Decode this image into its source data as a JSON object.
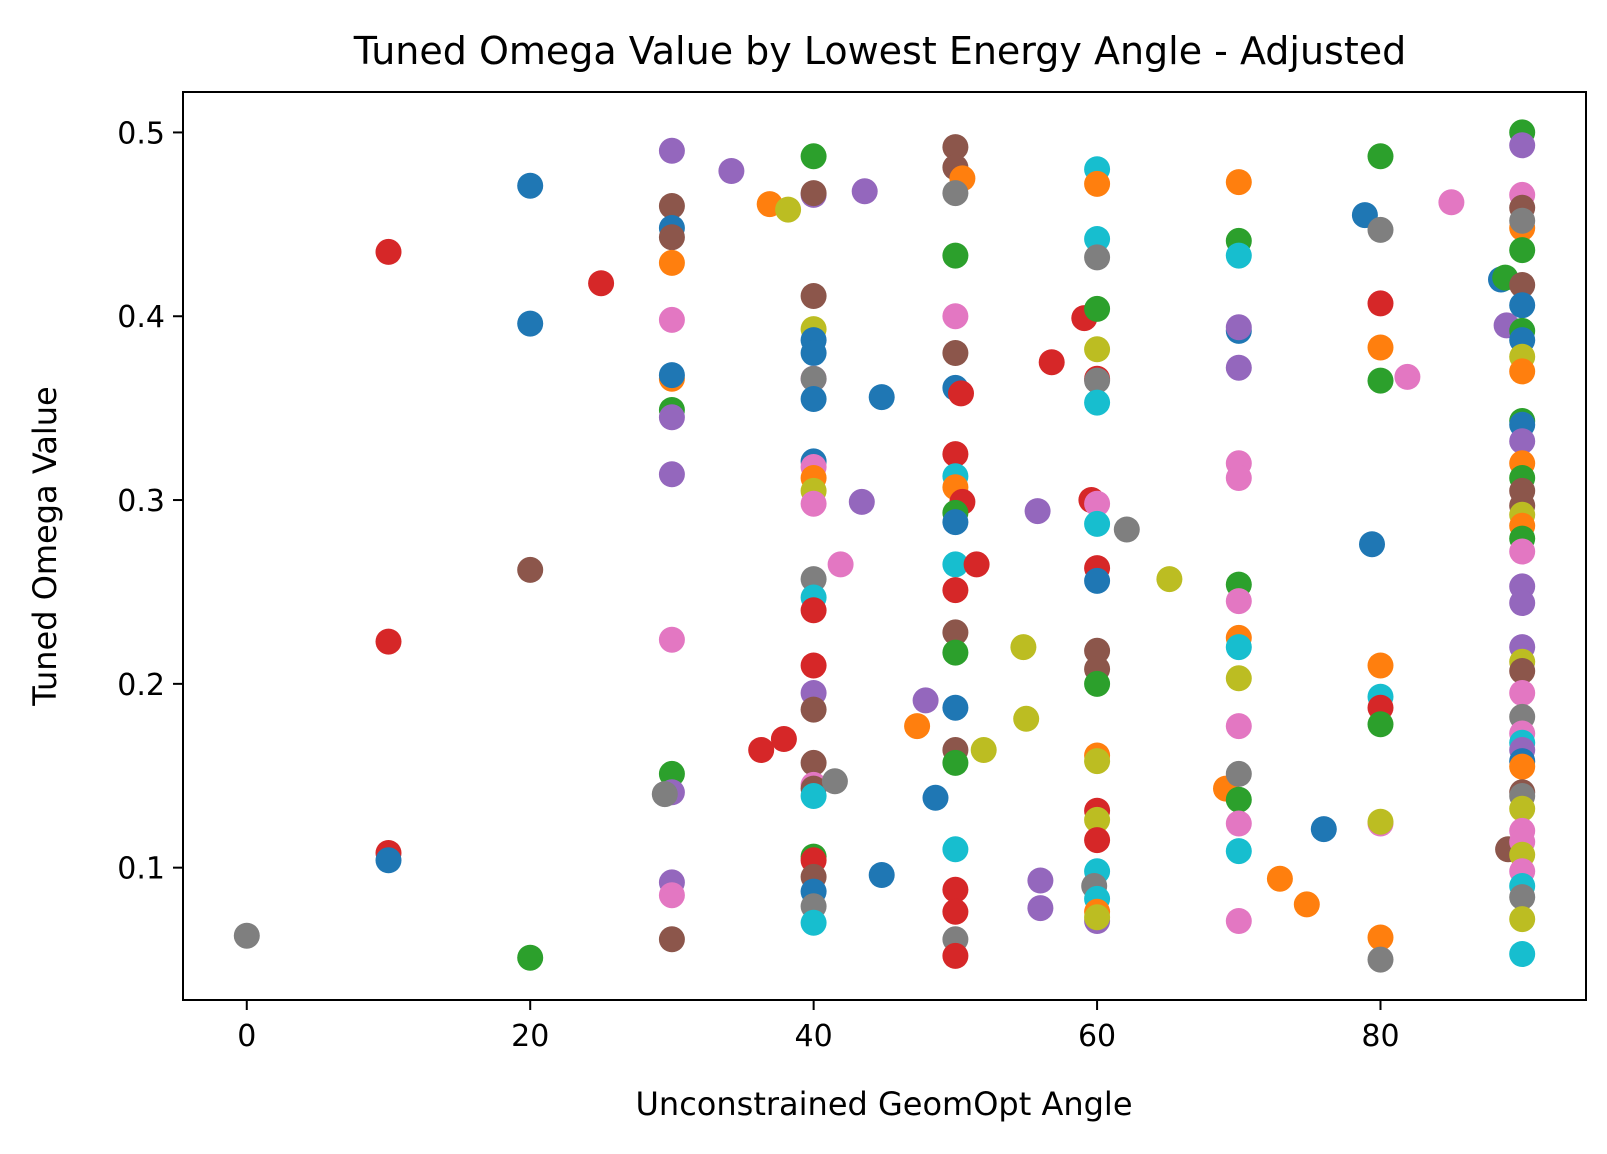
{
  "chart_data": {
    "type": "scatter",
    "title": "Tuned Omega Value by Lowest Energy Angle - Adjusted",
    "xlabel": "Unconstrained GeomOpt Angle",
    "ylabel": "Tuned Omega Value",
    "xlim": [
      -4.5,
      94.5
    ],
    "ylim": [
      0.028,
      0.522
    ],
    "xticks": [
      0,
      20,
      40,
      60,
      80
    ],
    "yticks": [
      0.1,
      0.2,
      0.3,
      0.4,
      0.5
    ],
    "xtick_labels": [
      "0",
      "20",
      "40",
      "60",
      "80"
    ],
    "ytick_labels": [
      "0.1",
      "0.2",
      "0.3",
      "0.4",
      "0.5"
    ],
    "grid": false,
    "legend": "none",
    "colors": {
      "blue": "#1f77b4",
      "orange": "#ff7f0e",
      "green": "#2ca02c",
      "red": "#d62728",
      "purple": "#9467bd",
      "brown": "#8c564b",
      "pink": "#e377c2",
      "gray": "#7f7f7f",
      "olive": "#bcbd22",
      "cyan": "#17becf"
    },
    "points": [
      {
        "x": 0,
        "y": 0.063,
        "c": "gray"
      },
      {
        "x": 10,
        "y": 0.435,
        "c": "red"
      },
      {
        "x": 10,
        "y": 0.223,
        "c": "red"
      },
      {
        "x": 10,
        "y": 0.108,
        "c": "red"
      },
      {
        "x": 10,
        "y": 0.104,
        "c": "blue"
      },
      {
        "x": 20,
        "y": 0.471,
        "c": "blue"
      },
      {
        "x": 20,
        "y": 0.396,
        "c": "blue"
      },
      {
        "x": 20,
        "y": 0.262,
        "c": "brown"
      },
      {
        "x": 20,
        "y": 0.051,
        "c": "green"
      },
      {
        "x": 25,
        "y": 0.418,
        "c": "red"
      },
      {
        "x": 30,
        "y": 0.49,
        "c": "purple"
      },
      {
        "x": 30,
        "y": 0.46,
        "c": "brown"
      },
      {
        "x": 30,
        "y": 0.448,
        "c": "blue"
      },
      {
        "x": 30,
        "y": 0.443,
        "c": "brown"
      },
      {
        "x": 30,
        "y": 0.429,
        "c": "orange"
      },
      {
        "x": 30,
        "y": 0.398,
        "c": "pink"
      },
      {
        "x": 30,
        "y": 0.366,
        "c": "orange"
      },
      {
        "x": 30,
        "y": 0.368,
        "c": "blue"
      },
      {
        "x": 30,
        "y": 0.349,
        "c": "green"
      },
      {
        "x": 30,
        "y": 0.345,
        "c": "purple"
      },
      {
        "x": 30,
        "y": 0.314,
        "c": "purple"
      },
      {
        "x": 30,
        "y": 0.224,
        "c": "pink"
      },
      {
        "x": 30,
        "y": 0.151,
        "c": "green"
      },
      {
        "x": 30,
        "y": 0.141,
        "c": "purple"
      },
      {
        "x": 29.5,
        "y": 0.14,
        "c": "gray"
      },
      {
        "x": 30,
        "y": 0.092,
        "c": "purple"
      },
      {
        "x": 30,
        "y": 0.085,
        "c": "pink"
      },
      {
        "x": 30,
        "y": 0.061,
        "c": "brown"
      },
      {
        "x": 34.2,
        "y": 0.479,
        "c": "purple"
      },
      {
        "x": 36.3,
        "y": 0.164,
        "c": "red"
      },
      {
        "x": 36.9,
        "y": 0.461,
        "c": "orange"
      },
      {
        "x": 37.9,
        "y": 0.17,
        "c": "red"
      },
      {
        "x": 38.2,
        "y": 0.458,
        "c": "olive"
      },
      {
        "x": 40,
        "y": 0.487,
        "c": "green"
      },
      {
        "x": 40,
        "y": 0.466,
        "c": "purple"
      },
      {
        "x": 40,
        "y": 0.467,
        "c": "brown"
      },
      {
        "x": 40,
        "y": 0.411,
        "c": "brown"
      },
      {
        "x": 40,
        "y": 0.393,
        "c": "olive"
      },
      {
        "x": 40,
        "y": 0.387,
        "c": "blue"
      },
      {
        "x": 40,
        "y": 0.38,
        "c": "blue"
      },
      {
        "x": 40,
        "y": 0.366,
        "c": "pink"
      },
      {
        "x": 40,
        "y": 0.366,
        "c": "gray"
      },
      {
        "x": 40,
        "y": 0.355,
        "c": "blue"
      },
      {
        "x": 40,
        "y": 0.321,
        "c": "blue"
      },
      {
        "x": 40,
        "y": 0.318,
        "c": "pink"
      },
      {
        "x": 40,
        "y": 0.312,
        "c": "orange"
      },
      {
        "x": 40,
        "y": 0.305,
        "c": "olive"
      },
      {
        "x": 40,
        "y": 0.298,
        "c": "pink"
      },
      {
        "x": 40,
        "y": 0.257,
        "c": "gray"
      },
      {
        "x": 40,
        "y": 0.247,
        "c": "cyan"
      },
      {
        "x": 40,
        "y": 0.24,
        "c": "red"
      },
      {
        "x": 40,
        "y": 0.21,
        "c": "red"
      },
      {
        "x": 40,
        "y": 0.195,
        "c": "purple"
      },
      {
        "x": 40,
        "y": 0.186,
        "c": "brown"
      },
      {
        "x": 40,
        "y": 0.157,
        "c": "brown"
      },
      {
        "x": 40,
        "y": 0.145,
        "c": "pink"
      },
      {
        "x": 40,
        "y": 0.143,
        "c": "brown"
      },
      {
        "x": 40,
        "y": 0.139,
        "c": "cyan"
      },
      {
        "x": 40,
        "y": 0.106,
        "c": "green"
      },
      {
        "x": 40,
        "y": 0.104,
        "c": "red"
      },
      {
        "x": 40,
        "y": 0.095,
        "c": "brown"
      },
      {
        "x": 40,
        "y": 0.087,
        "c": "blue"
      },
      {
        "x": 40,
        "y": 0.079,
        "c": "gray"
      },
      {
        "x": 40,
        "y": 0.07,
        "c": "cyan"
      },
      {
        "x": 41.5,
        "y": 0.147,
        "c": "gray"
      },
      {
        "x": 41.9,
        "y": 0.265,
        "c": "pink"
      },
      {
        "x": 43.4,
        "y": 0.299,
        "c": "purple"
      },
      {
        "x": 43.6,
        "y": 0.468,
        "c": "purple"
      },
      {
        "x": 44.8,
        "y": 0.356,
        "c": "blue"
      },
      {
        "x": 44.8,
        "y": 0.096,
        "c": "blue"
      },
      {
        "x": 47.3,
        "y": 0.177,
        "c": "orange"
      },
      {
        "x": 47.9,
        "y": 0.191,
        "c": "purple"
      },
      {
        "x": 48.6,
        "y": 0.138,
        "c": "blue"
      },
      {
        "x": 50,
        "y": 0.492,
        "c": "brown"
      },
      {
        "x": 50,
        "y": 0.481,
        "c": "brown"
      },
      {
        "x": 50.5,
        "y": 0.475,
        "c": "orange"
      },
      {
        "x": 50,
        "y": 0.467,
        "c": "gray"
      },
      {
        "x": 50,
        "y": 0.433,
        "c": "green"
      },
      {
        "x": 50,
        "y": 0.4,
        "c": "pink"
      },
      {
        "x": 50,
        "y": 0.38,
        "c": "brown"
      },
      {
        "x": 50,
        "y": 0.361,
        "c": "blue"
      },
      {
        "x": 50.4,
        "y": 0.358,
        "c": "red"
      },
      {
        "x": 50,
        "y": 0.325,
        "c": "red"
      },
      {
        "x": 50,
        "y": 0.313,
        "c": "cyan"
      },
      {
        "x": 50,
        "y": 0.307,
        "c": "orange"
      },
      {
        "x": 50.5,
        "y": 0.299,
        "c": "red"
      },
      {
        "x": 50,
        "y": 0.293,
        "c": "green"
      },
      {
        "x": 50,
        "y": 0.288,
        "c": "blue"
      },
      {
        "x": 50,
        "y": 0.265,
        "c": "cyan"
      },
      {
        "x": 51.5,
        "y": 0.265,
        "c": "red"
      },
      {
        "x": 50,
        "y": 0.251,
        "c": "red"
      },
      {
        "x": 50,
        "y": 0.228,
        "c": "brown"
      },
      {
        "x": 50,
        "y": 0.217,
        "c": "green"
      },
      {
        "x": 50,
        "y": 0.187,
        "c": "blue"
      },
      {
        "x": 50,
        "y": 0.164,
        "c": "brown"
      },
      {
        "x": 52,
        "y": 0.164,
        "c": "olive"
      },
      {
        "x": 50,
        "y": 0.157,
        "c": "green"
      },
      {
        "x": 50,
        "y": 0.11,
        "c": "cyan"
      },
      {
        "x": 50,
        "y": 0.088,
        "c": "red"
      },
      {
        "x": 50,
        "y": 0.076,
        "c": "red"
      },
      {
        "x": 50,
        "y": 0.061,
        "c": "gray"
      },
      {
        "x": 50,
        "y": 0.052,
        "c": "red"
      },
      {
        "x": 54.8,
        "y": 0.22,
        "c": "olive"
      },
      {
        "x": 55,
        "y": 0.181,
        "c": "olive"
      },
      {
        "x": 55.8,
        "y": 0.294,
        "c": "purple"
      },
      {
        "x": 56,
        "y": 0.093,
        "c": "purple"
      },
      {
        "x": 56,
        "y": 0.078,
        "c": "purple"
      },
      {
        "x": 56.8,
        "y": 0.375,
        "c": "red"
      },
      {
        "x": 59.1,
        "y": 0.399,
        "c": "red"
      },
      {
        "x": 59.6,
        "y": 0.3,
        "c": "red"
      },
      {
        "x": 60,
        "y": 0.48,
        "c": "cyan"
      },
      {
        "x": 60,
        "y": 0.472,
        "c": "orange"
      },
      {
        "x": 60,
        "y": 0.442,
        "c": "cyan"
      },
      {
        "x": 60,
        "y": 0.432,
        "c": "gray"
      },
      {
        "x": 60,
        "y": 0.404,
        "c": "green"
      },
      {
        "x": 60,
        "y": 0.382,
        "c": "olive"
      },
      {
        "x": 60,
        "y": 0.366,
        "c": "red"
      },
      {
        "x": 60,
        "y": 0.365,
        "c": "gray"
      },
      {
        "x": 60,
        "y": 0.353,
        "c": "cyan"
      },
      {
        "x": 60,
        "y": 0.298,
        "c": "pink"
      },
      {
        "x": 60,
        "y": 0.287,
        "c": "cyan"
      },
      {
        "x": 62.1,
        "y": 0.284,
        "c": "gray"
      },
      {
        "x": 60,
        "y": 0.263,
        "c": "red"
      },
      {
        "x": 60,
        "y": 0.256,
        "c": "blue"
      },
      {
        "x": 65.1,
        "y": 0.257,
        "c": "olive"
      },
      {
        "x": 60,
        "y": 0.218,
        "c": "brown"
      },
      {
        "x": 60,
        "y": 0.208,
        "c": "brown"
      },
      {
        "x": 60,
        "y": 0.2,
        "c": "green"
      },
      {
        "x": 60,
        "y": 0.161,
        "c": "orange"
      },
      {
        "x": 60,
        "y": 0.158,
        "c": "olive"
      },
      {
        "x": 60,
        "y": 0.131,
        "c": "red"
      },
      {
        "x": 60,
        "y": 0.126,
        "c": "olive"
      },
      {
        "x": 60,
        "y": 0.115,
        "c": "red"
      },
      {
        "x": 60,
        "y": 0.098,
        "c": "cyan"
      },
      {
        "x": 59.8,
        "y": 0.09,
        "c": "gray"
      },
      {
        "x": 60,
        "y": 0.083,
        "c": "cyan"
      },
      {
        "x": 60,
        "y": 0.076,
        "c": "orange"
      },
      {
        "x": 60,
        "y": 0.071,
        "c": "purple"
      },
      {
        "x": 60,
        "y": 0.073,
        "c": "olive"
      },
      {
        "x": 69.1,
        "y": 0.143,
        "c": "orange"
      },
      {
        "x": 70,
        "y": 0.473,
        "c": "orange"
      },
      {
        "x": 70,
        "y": 0.441,
        "c": "green"
      },
      {
        "x": 70,
        "y": 0.433,
        "c": "cyan"
      },
      {
        "x": 70,
        "y": 0.392,
        "c": "blue"
      },
      {
        "x": 70,
        "y": 0.394,
        "c": "purple"
      },
      {
        "x": 70,
        "y": 0.372,
        "c": "purple"
      },
      {
        "x": 70,
        "y": 0.32,
        "c": "pink"
      },
      {
        "x": 70,
        "y": 0.312,
        "c": "pink"
      },
      {
        "x": 70,
        "y": 0.254,
        "c": "green"
      },
      {
        "x": 70,
        "y": 0.245,
        "c": "pink"
      },
      {
        "x": 70,
        "y": 0.225,
        "c": "orange"
      },
      {
        "x": 70,
        "y": 0.22,
        "c": "cyan"
      },
      {
        "x": 70,
        "y": 0.203,
        "c": "olive"
      },
      {
        "x": 70,
        "y": 0.177,
        "c": "pink"
      },
      {
        "x": 70,
        "y": 0.151,
        "c": "gray"
      },
      {
        "x": 70,
        "y": 0.137,
        "c": "green"
      },
      {
        "x": 70,
        "y": 0.124,
        "c": "pink"
      },
      {
        "x": 70,
        "y": 0.109,
        "c": "cyan"
      },
      {
        "x": 70,
        "y": 0.071,
        "c": "pink"
      },
      {
        "x": 72.9,
        "y": 0.094,
        "c": "orange"
      },
      {
        "x": 74.8,
        "y": 0.08,
        "c": "orange"
      },
      {
        "x": 76,
        "y": 0.121,
        "c": "blue"
      },
      {
        "x": 78.9,
        "y": 0.455,
        "c": "blue"
      },
      {
        "x": 79.4,
        "y": 0.276,
        "c": "blue"
      },
      {
        "x": 80,
        "y": 0.487,
        "c": "green"
      },
      {
        "x": 80,
        "y": 0.447,
        "c": "gray"
      },
      {
        "x": 80,
        "y": 0.407,
        "c": "red"
      },
      {
        "x": 80,
        "y": 0.383,
        "c": "orange"
      },
      {
        "x": 80,
        "y": 0.365,
        "c": "green"
      },
      {
        "x": 81.9,
        "y": 0.367,
        "c": "pink"
      },
      {
        "x": 80,
        "y": 0.21,
        "c": "orange"
      },
      {
        "x": 80,
        "y": 0.193,
        "c": "cyan"
      },
      {
        "x": 80,
        "y": 0.187,
        "c": "red"
      },
      {
        "x": 80,
        "y": 0.178,
        "c": "green"
      },
      {
        "x": 80,
        "y": 0.124,
        "c": "pink"
      },
      {
        "x": 80,
        "y": 0.125,
        "c": "olive"
      },
      {
        "x": 80,
        "y": 0.062,
        "c": "orange"
      },
      {
        "x": 80,
        "y": 0.05,
        "c": "gray"
      },
      {
        "x": 85,
        "y": 0.462,
        "c": "pink"
      },
      {
        "x": 88.5,
        "y": 0.42,
        "c": "blue"
      },
      {
        "x": 88.8,
        "y": 0.421,
        "c": "green"
      },
      {
        "x": 88.9,
        "y": 0.395,
        "c": "purple"
      },
      {
        "x": 89,
        "y": 0.11,
        "c": "brown"
      },
      {
        "x": 90,
        "y": 0.5,
        "c": "green"
      },
      {
        "x": 90,
        "y": 0.493,
        "c": "purple"
      },
      {
        "x": 90,
        "y": 0.466,
        "c": "pink"
      },
      {
        "x": 90,
        "y": 0.459,
        "c": "brown"
      },
      {
        "x": 90,
        "y": 0.448,
        "c": "orange"
      },
      {
        "x": 90,
        "y": 0.452,
        "c": "gray"
      },
      {
        "x": 90,
        "y": 0.436,
        "c": "green"
      },
      {
        "x": 90,
        "y": 0.417,
        "c": "brown"
      },
      {
        "x": 90,
        "y": 0.406,
        "c": "blue"
      },
      {
        "x": 90,
        "y": 0.392,
        "c": "green"
      },
      {
        "x": 90,
        "y": 0.387,
        "c": "blue"
      },
      {
        "x": 90,
        "y": 0.378,
        "c": "olive"
      },
      {
        "x": 90,
        "y": 0.37,
        "c": "orange"
      },
      {
        "x": 90,
        "y": 0.343,
        "c": "green"
      },
      {
        "x": 90,
        "y": 0.341,
        "c": "blue"
      },
      {
        "x": 90,
        "y": 0.332,
        "c": "purple"
      },
      {
        "x": 90,
        "y": 0.32,
        "c": "orange"
      },
      {
        "x": 90,
        "y": 0.312,
        "c": "green"
      },
      {
        "x": 90,
        "y": 0.305,
        "c": "brown"
      },
      {
        "x": 90,
        "y": 0.297,
        "c": "brown"
      },
      {
        "x": 90,
        "y": 0.292,
        "c": "olive"
      },
      {
        "x": 90,
        "y": 0.286,
        "c": "orange"
      },
      {
        "x": 90,
        "y": 0.279,
        "c": "green"
      },
      {
        "x": 90,
        "y": 0.272,
        "c": "pink"
      },
      {
        "x": 90,
        "y": 0.253,
        "c": "purple"
      },
      {
        "x": 90,
        "y": 0.244,
        "c": "purple"
      },
      {
        "x": 90,
        "y": 0.22,
        "c": "purple"
      },
      {
        "x": 90,
        "y": 0.212,
        "c": "olive"
      },
      {
        "x": 90,
        "y": 0.207,
        "c": "brown"
      },
      {
        "x": 90,
        "y": 0.195,
        "c": "pink"
      },
      {
        "x": 90,
        "y": 0.182,
        "c": "gray"
      },
      {
        "x": 90,
        "y": 0.173,
        "c": "pink"
      },
      {
        "x": 90,
        "y": 0.168,
        "c": "cyan"
      },
      {
        "x": 90,
        "y": 0.164,
        "c": "purple"
      },
      {
        "x": 90,
        "y": 0.158,
        "c": "blue"
      },
      {
        "x": 90,
        "y": 0.155,
        "c": "orange"
      },
      {
        "x": 90,
        "y": 0.141,
        "c": "brown"
      },
      {
        "x": 90,
        "y": 0.139,
        "c": "gray"
      },
      {
        "x": 90,
        "y": 0.132,
        "c": "olive"
      },
      {
        "x": 90,
        "y": 0.12,
        "c": "pink"
      },
      {
        "x": 90,
        "y": 0.114,
        "c": "pink"
      },
      {
        "x": 90,
        "y": 0.107,
        "c": "olive"
      },
      {
        "x": 90,
        "y": 0.098,
        "c": "pink"
      },
      {
        "x": 90,
        "y": 0.09,
        "c": "cyan"
      },
      {
        "x": 90,
        "y": 0.084,
        "c": "gray"
      },
      {
        "x": 90,
        "y": 0.072,
        "c": "olive"
      },
      {
        "x": 90,
        "y": 0.053,
        "c": "cyan"
      }
    ]
  }
}
